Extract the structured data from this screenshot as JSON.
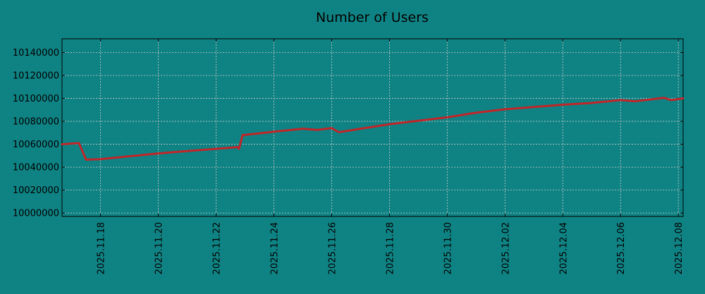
{
  "chart_data": {
    "type": "line",
    "title": "Number of Users",
    "xlabel": "",
    "ylabel": "",
    "x_range": [
      "2025-11-16 16:00",
      "2025-12-08 04:00"
    ],
    "ylim": [
      9997000,
      10152000
    ],
    "grid": true,
    "legend": "none",
    "y_ticks": [
      "10000000",
      "10020000",
      "10040000",
      "10060000",
      "10080000",
      "10100000",
      "10120000",
      "10140000"
    ],
    "x_ticks": [
      "2025.11.18",
      "2025.11.20",
      "2025.11.22",
      "2025.11.24",
      "2025.11.26",
      "2025.11.28",
      "2025.11.30",
      "2025.12.02",
      "2025.12.04",
      "2025.12.06",
      "2025.12.08"
    ],
    "series": [
      {
        "color": "#c0262a",
        "points": [
          [
            "2025-11-16 16:00",
            10060000
          ],
          [
            "2025-11-17 06:00",
            10061000
          ],
          [
            "2025-11-17 12:00",
            10046500
          ],
          [
            "2025-11-18 00:00",
            10047000
          ],
          [
            "2025-11-19 00:00",
            10049500
          ],
          [
            "2025-11-20 00:00",
            10052000
          ],
          [
            "2025-11-21 00:00",
            10054000
          ],
          [
            "2025-11-22 00:00",
            10056000
          ],
          [
            "2025-11-22 18:00",
            10057500
          ],
          [
            "2025-11-22 19:00",
            10056000
          ],
          [
            "2025-11-22 22:00",
            10068000
          ],
          [
            "2025-11-23 12:00",
            10069500
          ],
          [
            "2025-11-24 00:00",
            10071000
          ],
          [
            "2025-11-25 00:00",
            10073500
          ],
          [
            "2025-11-25 12:00",
            10072500
          ],
          [
            "2025-11-26 00:00",
            10074000
          ],
          [
            "2025-11-26 06:00",
            10070500
          ],
          [
            "2025-11-27 00:00",
            10073500
          ],
          [
            "2025-11-28 00:00",
            10077500
          ],
          [
            "2025-11-29 00:00",
            10080500
          ],
          [
            "2025-11-30 00:00",
            10083500
          ],
          [
            "2025-12-01 00:00",
            10087500
          ],
          [
            "2025-12-02 00:00",
            10090500
          ],
          [
            "2025-12-03 00:00",
            10092500
          ],
          [
            "2025-12-04 00:00",
            10094500
          ],
          [
            "2025-12-05 00:00",
            10096000
          ],
          [
            "2025-12-06 00:00",
            10098500
          ],
          [
            "2025-12-06 12:00",
            10097500
          ],
          [
            "2025-12-07 12:00",
            10100500
          ],
          [
            "2025-12-07 18:00",
            10098500
          ],
          [
            "2025-12-08 04:00",
            10100000
          ]
        ]
      }
    ]
  }
}
